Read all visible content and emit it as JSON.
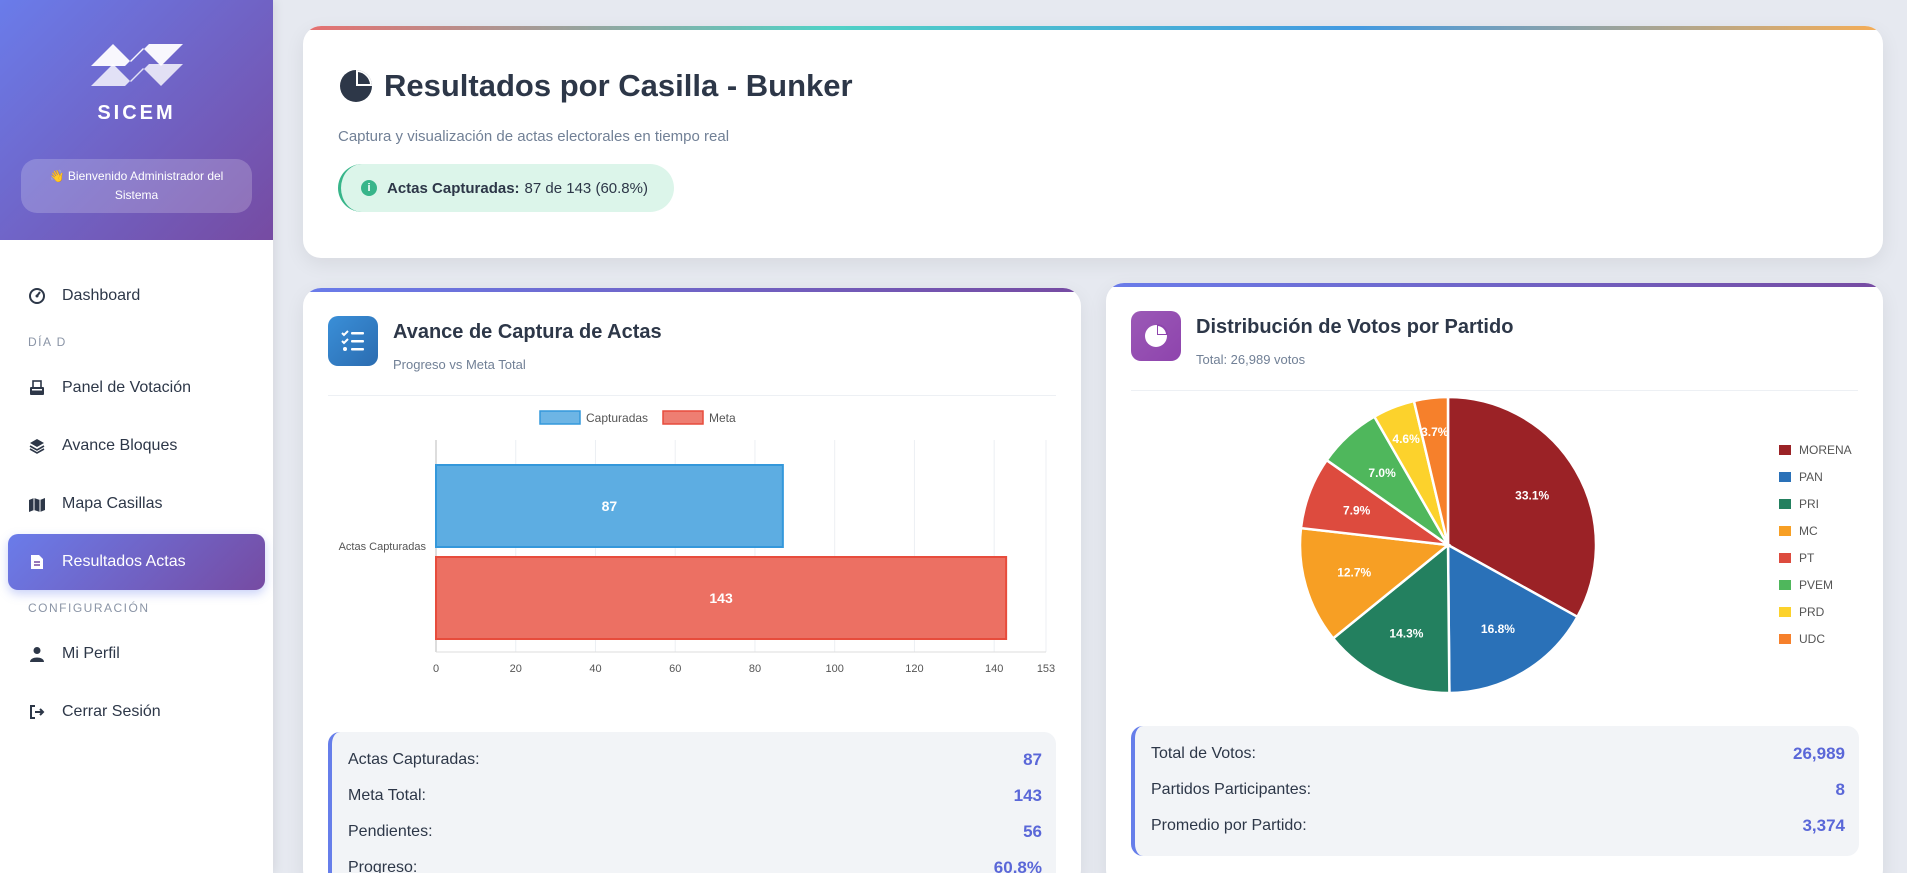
{
  "sidebar": {
    "logo_text": "SICEM",
    "welcome": "👋 Bienvenido Administrador del Sistema",
    "items": [
      {
        "label": "Dashboard",
        "icon": "gauge-icon"
      },
      {
        "section": "DÍA D"
      },
      {
        "label": "Panel de Votación",
        "icon": "vote-box-icon"
      },
      {
        "label": "Avance Bloques",
        "icon": "layers-icon"
      },
      {
        "label": "Mapa Casillas",
        "icon": "map-icon"
      },
      {
        "label": "Resultados Actas",
        "icon": "file-icon",
        "active": true
      },
      {
        "section": "CONFIGURACIÓN"
      },
      {
        "label": "Mi Perfil",
        "icon": "user-icon"
      },
      {
        "label": "Cerrar Sesión",
        "icon": "logout-icon"
      }
    ]
  },
  "header": {
    "title": "Resultados por Casilla - Bunker",
    "subtitle": "Captura y visualización de actas electorales en tiempo real",
    "captured_label": "Actas Capturadas:",
    "captured_value": "87 de 143 (60.8%)"
  },
  "progress_card": {
    "title": "Avance de Captura de Actas",
    "subtitle": "Progreso vs Meta Total",
    "stats": [
      {
        "label": "Actas Capturadas:",
        "value": "87"
      },
      {
        "label": "Meta Total:",
        "value": "143"
      },
      {
        "label": "Pendientes:",
        "value": "56"
      },
      {
        "label": "Progreso:",
        "value": "60.8%"
      }
    ]
  },
  "votes_card": {
    "title": "Distribución de Votos por Partido",
    "subtitle": "Total: 26,989 votos",
    "stats": [
      {
        "label": "Total de Votos:",
        "value": "26,989"
      },
      {
        "label": "Partidos Participantes:",
        "value": "8"
      },
      {
        "label": "Promedio por Partido:",
        "value": "3,374"
      }
    ]
  },
  "chart_data": [
    {
      "type": "bar",
      "orientation": "horizontal",
      "categories": [
        "Actas Capturadas"
      ],
      "series": [
        {
          "name": "Capturadas",
          "values": [
            87
          ],
          "color": "#5dade2"
        },
        {
          "name": "Meta",
          "values": [
            143
          ],
          "color": "#ec7063"
        }
      ],
      "xticks": [
        "0",
        "20",
        "40",
        "60",
        "80",
        "100",
        "120",
        "140",
        "153"
      ],
      "xlim": [
        0,
        153
      ],
      "legend": "top",
      "grid": true
    },
    {
      "type": "pie",
      "labels": [
        "MORENA",
        "PAN",
        "PRI",
        "MC",
        "PT",
        "PVEM",
        "PRD",
        "UDC"
      ],
      "values": [
        33.1,
        16.8,
        14.3,
        12.7,
        7.9,
        7.0,
        4.6,
        3.7
      ],
      "value_labels": [
        "33.1%",
        "16.8%",
        "14.3%",
        "12.7%",
        "7.9%",
        "7.0%",
        "4.6%",
        "3.7%"
      ],
      "colors": [
        "#9b2226",
        "#2a71b8",
        "#23805f",
        "#f79f24",
        "#dd4b3e",
        "#4fb75c",
        "#fcd22c",
        "#f6802b"
      ],
      "legend": "right"
    }
  ]
}
